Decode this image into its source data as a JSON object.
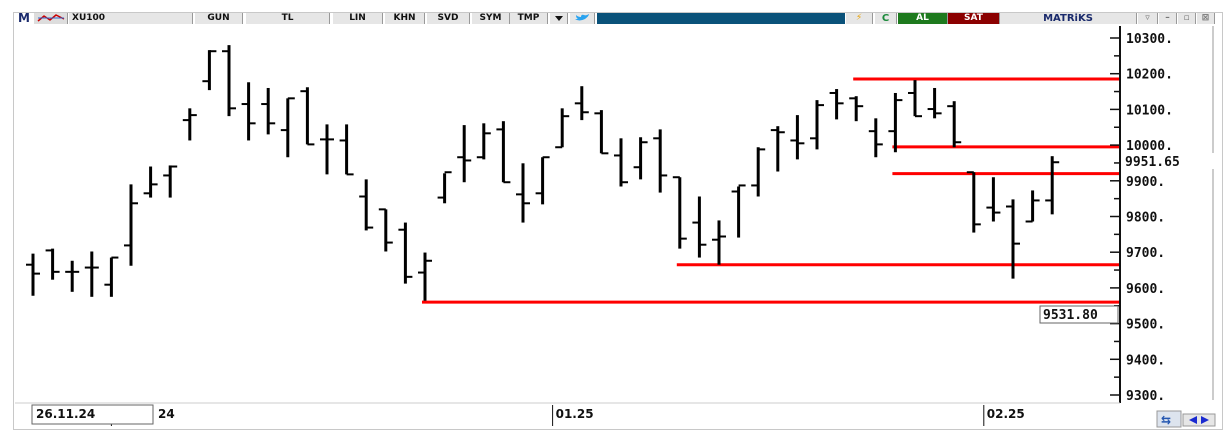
{
  "toolbar": {
    "logo": "M",
    "symbol": "XU100",
    "period": "GUN",
    "currency": "TL",
    "scale": "LIN",
    "buttons": [
      "KHN",
      "SVD",
      "SYM",
      "TMP"
    ],
    "buy_label": "AL",
    "sell_label": "SAT",
    "brand": "MATRiKS",
    "icons": [
      "chart-tool-icon",
      "dropdown-icon",
      "twitter-icon",
      "lightning-icon",
      "refresh-c-icon",
      "dropdown-window-icon",
      "minimize-icon",
      "restore-icon",
      "close-icon"
    ],
    "colors": {
      "buy": "#1e7a1e",
      "sell": "#8b0000",
      "bar": "#0a527a"
    }
  },
  "chart_data": {
    "type": "ohlc",
    "y_ticks": [
      "10300.",
      "10200.",
      "10100.",
      "10000.",
      "9900.",
      "9800.",
      "9700.",
      "9600.",
      "9500.",
      "9400.",
      "9300."
    ],
    "ylim": [
      9300,
      10300
    ],
    "x_labels": [
      {
        "bar": 4,
        "label": "24"
      },
      {
        "bar": 26,
        "label": "01.25"
      },
      {
        "bar": 48,
        "label": "02.25"
      }
    ],
    "bars": [
      [
        9665,
        9696,
        9578,
        9640
      ],
      [
        9705,
        9710,
        9623,
        9645
      ],
      [
        9645,
        9676,
        9589,
        9645
      ],
      [
        9657,
        9702,
        9575,
        9657
      ],
      [
        9609,
        9685,
        9575,
        9685
      ],
      [
        9719,
        9890,
        9662,
        9837
      ],
      [
        9865,
        9940,
        9853,
        9890
      ],
      [
        9915,
        9943,
        9853,
        9940
      ],
      [
        10070,
        10103,
        10013,
        10084
      ],
      [
        10179,
        10266,
        10154,
        10263
      ],
      [
        10263,
        10280,
        10081,
        10103
      ],
      [
        10115,
        10176,
        10013,
        10061
      ],
      [
        10115,
        10160,
        10030,
        10061
      ],
      [
        10042,
        10131,
        9966,
        10131
      ],
      [
        10151,
        10162,
        10002,
        10002
      ],
      [
        10016,
        10058,
        9918,
        10016
      ],
      [
        10013,
        10058,
        9918,
        9918
      ],
      [
        9856,
        9904,
        9761,
        9769
      ],
      [
        9820,
        9820,
        9702,
        9727
      ],
      [
        9763,
        9783,
        9612,
        9631
      ],
      [
        9643,
        9699,
        9564,
        9676
      ],
      [
        9853,
        9921,
        9837,
        9924
      ],
      [
        9966,
        10056,
        9896,
        9957
      ],
      [
        9966,
        10061,
        9960,
        10033
      ],
      [
        10044,
        10067,
        9896,
        9896
      ],
      [
        9862,
        9949,
        9783,
        9837
      ],
      [
        9865,
        9966,
        9834,
        9966
      ],
      [
        9994,
        10103,
        9994,
        10081
      ],
      [
        10117,
        10165,
        10070,
        10092
      ],
      [
        10089,
        10098,
        9977,
        9977
      ],
      [
        9971,
        10019,
        9884,
        9896
      ],
      [
        9938,
        10022,
        9904,
        10008
      ],
      [
        10019,
        10044,
        9867,
        9915
      ],
      [
        9910,
        9910,
        9710,
        9738
      ],
      [
        9783,
        9856,
        9685,
        9721
      ],
      [
        9735,
        9789,
        9665,
        9744
      ],
      [
        9870,
        9884,
        9741,
        9887
      ],
      [
        9887,
        9994,
        9856,
        9988
      ],
      [
        10042,
        10053,
        9926,
        10036
      ],
      [
        10013,
        10084,
        9960,
        10005
      ],
      [
        10019,
        10126,
        9988,
        10112
      ],
      [
        10146,
        10157,
        10072,
        10117
      ],
      [
        10131,
        10137,
        10067,
        10109
      ],
      [
        10039,
        10075,
        9966,
        10002
      ],
      [
        10039,
        10146,
        9980,
        10126
      ],
      [
        10146,
        10182,
        10081,
        10081
      ],
      [
        10101,
        10160,
        10075,
        10089
      ],
      [
        10109,
        10123,
        9994,
        10008
      ],
      [
        9924,
        9924,
        9755,
        9778
      ],
      [
        9825,
        9910,
        9786,
        9811
      ],
      [
        9828,
        9848,
        9626,
        9724
      ],
      [
        9786,
        9873,
        9786,
        9845
      ],
      [
        9845,
        9969,
        9806,
        9952
      ]
    ],
    "bars_format": [
      "open",
      "high",
      "low",
      "close"
    ],
    "levels": [
      {
        "price": 10185,
        "from_bar": 42
      },
      {
        "price": 9995,
        "from_bar": 44
      },
      {
        "price": 9920,
        "from_bar": 44
      },
      {
        "price": 9665,
        "from_bar": 33
      },
      {
        "price": 9560,
        "from_bar": 20
      }
    ],
    "level_color": "#ff0000",
    "last_price_label": "9951.65",
    "cursor_price_label": "9531.80",
    "cursor_date_label": "26.11.24"
  }
}
